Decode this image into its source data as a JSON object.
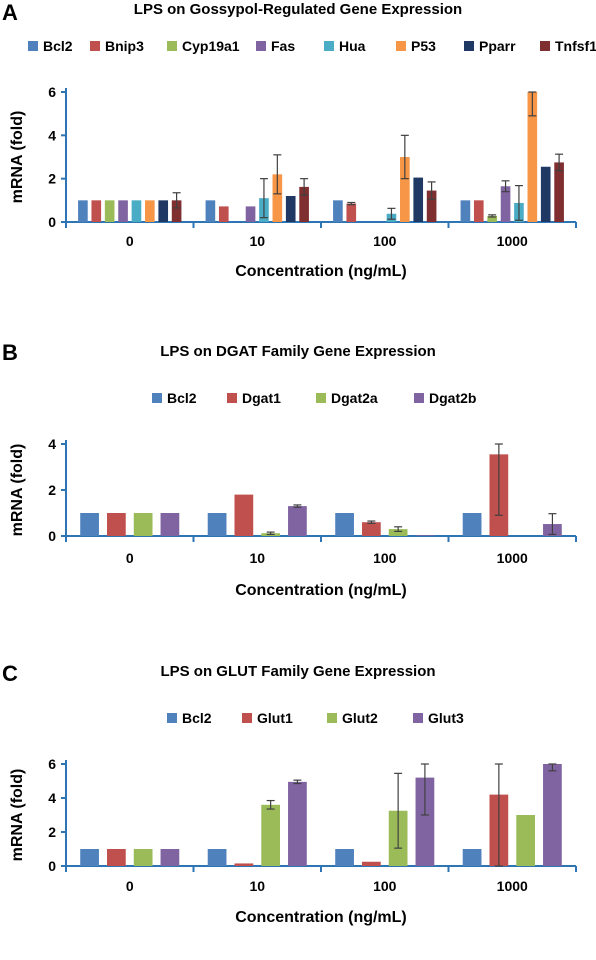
{
  "chart_data": [
    {
      "panel": "A",
      "type": "bar",
      "title": "LPS on Gossypol-Regulated Gene Expression",
      "xlabel": "Concentration (ng/mL)",
      "ylabel": "mRNA (fold)",
      "categories": [
        "0",
        "10",
        "100",
        "1000"
      ],
      "ylim": [
        0,
        6
      ],
      "yticks": [
        0,
        2,
        4,
        6
      ],
      "legend_position": "top",
      "series": [
        {
          "name": "Bcl2",
          "color": "#4F81BD",
          "values": [
            1.0,
            1.0,
            1.0,
            1.0
          ],
          "errors": [
            0.0,
            0.0,
            0.0,
            0.0
          ]
        },
        {
          "name": "Bnip3",
          "color": "#C0504D",
          "values": [
            1.0,
            0.72,
            0.85,
            1.0
          ],
          "errors": [
            0.0,
            0.0,
            0.05,
            0.0
          ]
        },
        {
          "name": "Cyp19a1",
          "color": "#9BBB59",
          "values": [
            1.0,
            0.0,
            0.0,
            0.28
          ],
          "errors": [
            0.0,
            0.0,
            0.0,
            0.05
          ]
        },
        {
          "name": "Fas",
          "color": "#8064A2",
          "values": [
            1.0,
            0.72,
            0.0,
            1.65
          ],
          "errors": [
            0.0,
            0.0,
            0.0,
            0.25
          ]
        },
        {
          "name": "Hua",
          "color": "#4BACC6",
          "values": [
            1.0,
            1.1,
            0.38,
            0.88
          ],
          "errors": [
            0.0,
            0.9,
            0.25,
            0.8
          ]
        },
        {
          "name": "P53",
          "color": "#F79646",
          "values": [
            1.0,
            2.2,
            3.0,
            6.0
          ],
          "errors": [
            0.0,
            0.9,
            1.0,
            1.1
          ]
        },
        {
          "name": "Pparr",
          "color": "#1F3864",
          "values": [
            1.0,
            1.2,
            2.05,
            2.55
          ],
          "errors": [
            0.0,
            0.0,
            0.0,
            0.0
          ]
        },
        {
          "name": "Tnfsf10",
          "color": "#7F2F2F",
          "values": [
            1.0,
            1.62,
            1.45,
            2.75
          ],
          "errors": [
            0.35,
            0.38,
            0.4,
            0.38
          ]
        }
      ]
    },
    {
      "panel": "B",
      "type": "bar",
      "title": "LPS on DGAT Family Gene Expression",
      "xlabel": "Concentration (ng/mL)",
      "ylabel": "mRNA (fold)",
      "categories": [
        "0",
        "10",
        "100",
        "1000"
      ],
      "ylim": [
        0,
        4
      ],
      "yticks": [
        0,
        2,
        4
      ],
      "legend_position": "top",
      "series": [
        {
          "name": "Bcl2",
          "color": "#4F81BD",
          "values": [
            1.0,
            1.0,
            1.0,
            1.0
          ],
          "errors": [
            0.0,
            0.0,
            0.0,
            0.0
          ]
        },
        {
          "name": "Dgat1",
          "color": "#C0504D",
          "values": [
            1.0,
            1.8,
            0.6,
            3.55
          ],
          "errors": [
            0.0,
            0.0,
            0.05,
            2.65
          ]
        },
        {
          "name": "Dgat2a",
          "color": "#9BBB59",
          "values": [
            1.0,
            0.12,
            0.3,
            0.0
          ],
          "errors": [
            0.0,
            0.05,
            0.1,
            0.0
          ]
        },
        {
          "name": "Dgat2b",
          "color": "#8064A2",
          "values": [
            1.0,
            1.3,
            0.03,
            0.52
          ],
          "errors": [
            0.0,
            0.05,
            0.0,
            0.45
          ]
        }
      ]
    },
    {
      "panel": "C",
      "type": "bar",
      "title": "LPS on GLUT Family Gene Expression",
      "xlabel": "Concentration (ng/mL)",
      "ylabel": "mRNA (fold)",
      "categories": [
        "0",
        "10",
        "100",
        "1000"
      ],
      "ylim": [
        0,
        6
      ],
      "yticks": [
        0,
        2,
        4,
        6
      ],
      "legend_position": "top",
      "series": [
        {
          "name": "Bcl2",
          "color": "#4F81BD",
          "values": [
            1.0,
            1.0,
            1.0,
            1.0
          ],
          "errors": [
            0.0,
            0.0,
            0.0,
            0.0
          ]
        },
        {
          "name": "Glut1",
          "color": "#C0504D",
          "values": [
            1.0,
            0.15,
            0.25,
            4.2
          ],
          "errors": [
            0.0,
            0.0,
            0.0,
            4.3
          ]
        },
        {
          "name": "Glut2",
          "color": "#9BBB59",
          "values": [
            1.0,
            3.6,
            3.25,
            3.0
          ],
          "errors": [
            0.0,
            0.25,
            2.2,
            0.0
          ]
        },
        {
          "name": "Glut3",
          "color": "#8064A2",
          "values": [
            1.0,
            4.95,
            5.2,
            6.0
          ],
          "errors": [
            0.0,
            0.1,
            2.2,
            0.4
          ]
        }
      ]
    }
  ]
}
